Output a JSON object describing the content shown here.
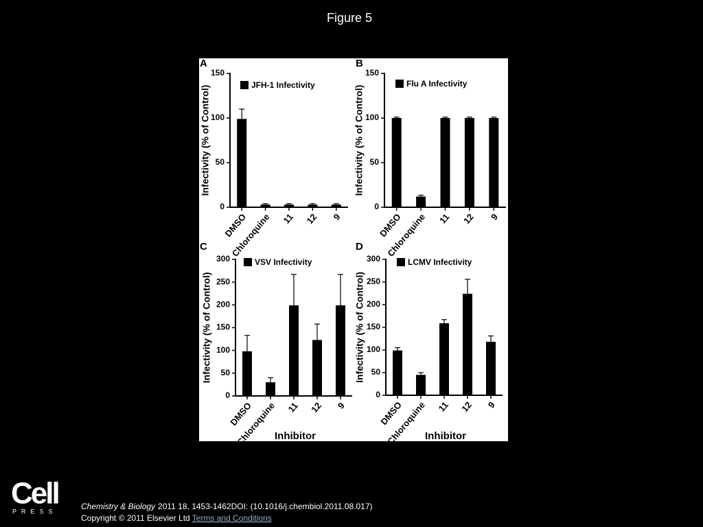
{
  "title": "Figure 5",
  "chart_data": [
    {
      "type": "bar",
      "label": "A",
      "ylabel": "Infectivity (% of Control)",
      "categories": [
        "DMSO",
        "Chloroquine",
        "11",
        "12",
        "9"
      ],
      "series": [
        {
          "name": "JFH-1 Infectivity",
          "color": "#000000",
          "values": [
            99,
            3,
            3,
            3,
            3
          ],
          "errors": [
            11,
            1,
            1,
            1,
            1
          ]
        }
      ],
      "ylim": [
        0,
        150
      ],
      "yticks": [
        0,
        50,
        100,
        150
      ]
    },
    {
      "type": "bar",
      "label": "B",
      "ylabel": "Infectivity (% of Control)",
      "categories": [
        "DMSO",
        "Chloroquine",
        "11",
        "12",
        "9"
      ],
      "series": [
        {
          "name": "Flu A Infectivity",
          "color": "#000000",
          "values": [
            100,
            12,
            100,
            100,
            100
          ],
          "errors": [
            1,
            1.5,
            1,
            1,
            1
          ]
        }
      ],
      "ylim": [
        0,
        150
      ],
      "yticks": [
        0,
        50,
        100,
        150
      ]
    },
    {
      "type": "bar",
      "label": "C",
      "ylabel": "Infectivity (% of Control)",
      "xlabel": "Inhibitor",
      "categories": [
        "DMSO",
        "Chloroquine",
        "11",
        "12",
        "9"
      ],
      "series": [
        {
          "name": "VSV Infectivity",
          "color": "#000000",
          "values": [
            98,
            30,
            199,
            123,
            199
          ],
          "errors": [
            35,
            10,
            68,
            35,
            68
          ]
        }
      ],
      "ylim": [
        0,
        300
      ],
      "yticks": [
        0,
        50,
        100,
        150,
        200,
        250,
        300
      ]
    },
    {
      "type": "bar",
      "label": "D",
      "ylabel": "Infectivity (% of Control)",
      "xlabel": "Inhibitor",
      "categories": [
        "DMSO",
        "Chloroquine",
        "11",
        "12",
        "9"
      ],
      "series": [
        {
          "name": "LCMV Infectivity",
          "color": "#000000",
          "values": [
            99,
            45,
            159,
            224,
            118
          ],
          "errors": [
            6,
            5,
            8,
            32,
            13
          ]
        }
      ],
      "ylim": [
        0,
        300
      ],
      "yticks": [
        0,
        50,
        100,
        150,
        200,
        250,
        300
      ]
    }
  ],
  "footer": {
    "logo": "Cell",
    "logo_sub": "PRESS",
    "journal": "Chemistry & Biology",
    "citation": "2011 18, 1453-1462DOI: (10.1016/j.chembiol.2011.08.017)",
    "copyright": "Copyright © 2011 Elsevier Ltd",
    "link": "Terms and Conditions"
  }
}
